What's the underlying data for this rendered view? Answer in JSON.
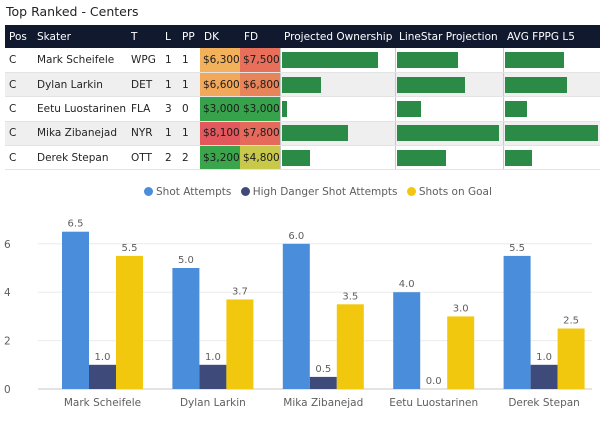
{
  "title": "Top Ranked - Centers",
  "table": {
    "headers": {
      "pos": "Pos",
      "skater": "Skater",
      "team": "T",
      "line": "L",
      "pp": "PP",
      "dk": "DK",
      "fd": "FD",
      "ownership": "Projected Ownership",
      "projection": "LineStar Projection",
      "fppg": "AVG FPPG L5"
    },
    "rows": [
      {
        "pos": "C",
        "skater": "Mark Scheifele",
        "team": "WPG",
        "line": "1",
        "pp": "1",
        "dk": "$6,300",
        "fd": "$7,500",
        "dk_color": "#f2b15a",
        "fd_color": "#e8705a",
        "ownership": 0.87,
        "projection": 0.59,
        "fppg": 0.64
      },
      {
        "pos": "C",
        "skater": "Dylan Larkin",
        "team": "DET",
        "line": "1",
        "pp": "1",
        "dk": "$6,600",
        "fd": "$6,800",
        "dk_color": "#f2a85a",
        "fd_color": "#e8845a",
        "ownership": 0.36,
        "projection": 0.66,
        "fppg": 0.67
      },
      {
        "pos": "C",
        "skater": "Eetu Luostarinen",
        "team": "FLA",
        "line": "3",
        "pp": "0",
        "dk": "$3,000",
        "fd": "$3,000",
        "dk_color": "#36a24b",
        "fd_color": "#36a24b",
        "ownership": 0.05,
        "projection": 0.24,
        "fppg": 0.24
      },
      {
        "pos": "C",
        "skater": "Mika Zibanejad",
        "team": "NYR",
        "line": "1",
        "pp": "1",
        "dk": "$8,100",
        "fd": "$7,800",
        "dk_color": "#e3585c",
        "fd_color": "#e66a5c",
        "ownership": 0.6,
        "projection": 0.99,
        "fppg": 1.0
      },
      {
        "pos": "C",
        "skater": "Derek Stepan",
        "team": "OTT",
        "line": "2",
        "pp": "2",
        "dk": "$3,200",
        "fd": "$4,800",
        "dk_color": "#3ba54c",
        "fd_color": "#c8c84a",
        "ownership": 0.26,
        "projection": 0.48,
        "fppg": 0.29
      }
    ]
  },
  "legend": {
    "items": [
      {
        "label": "Shot Attempts",
        "color": "#4a8ddb"
      },
      {
        "label": "High Danger Shot Attempts",
        "color": "#3d4a7a"
      },
      {
        "label": "Shots on Goal",
        "color": "#f2c80f"
      }
    ]
  },
  "chart_data": {
    "type": "bar",
    "categories": [
      "Mark Scheifele",
      "Dylan Larkin",
      "Mika Zibanejad",
      "Eetu Luostarinen",
      "Derek Stepan"
    ],
    "series": [
      {
        "name": "Shot Attempts",
        "color": "#4a8ddb",
        "values": [
          6.5,
          5.0,
          6.0,
          4.0,
          5.5
        ],
        "labels": [
          "6.5",
          "5.0",
          "6.0",
          "4.0",
          "5.5"
        ]
      },
      {
        "name": "High Danger Shot Attempts",
        "color": "#3d4a7a",
        "values": [
          1.0,
          1.0,
          0.5,
          0.0,
          1.0
        ],
        "labels": [
          "1.0",
          "1.0",
          "0.5",
          "0.0",
          "1.0"
        ]
      },
      {
        "name": "Shots on Goal",
        "color": "#f2c80f",
        "values": [
          5.5,
          3.7,
          3.5,
          3.0,
          2.5
        ],
        "labels": [
          "5.5",
          "3.7",
          "3.5",
          "3.0",
          "2.5"
        ]
      }
    ],
    "yticks": [
      0,
      2,
      4,
      6
    ],
    "ylim": [
      0,
      7
    ],
    "title": "",
    "xlabel": "",
    "ylabel": ""
  }
}
